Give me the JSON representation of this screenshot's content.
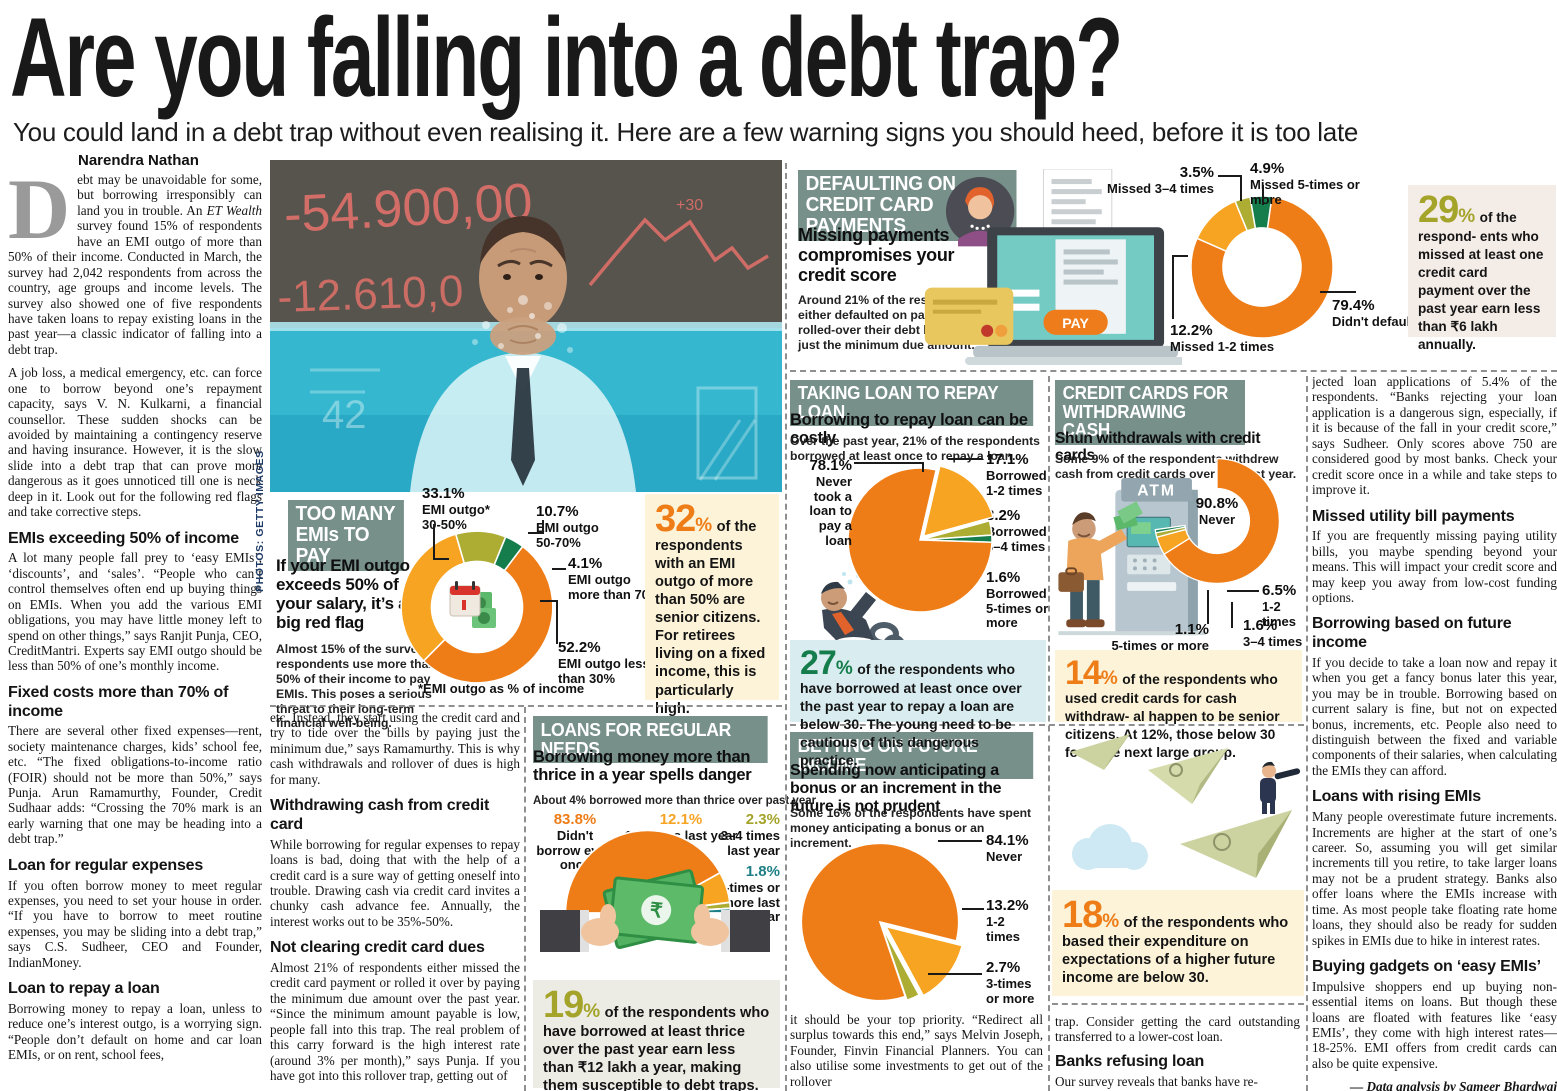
{
  "masthead": {
    "headline": "Are you falling into a debt trap?",
    "deck": "You could land in a debt trap without even realising it. Here are a few warning signs you should heed, before it is too late",
    "byline": "Narendra Nathan"
  },
  "photo": {
    "credit": "PHOTOS: GETTY IMAGES",
    "board1": "-54.900,00",
    "board2": "-12.610,0",
    "board3": "+30",
    "board4": "42"
  },
  "article": {
    "dropcap": "D",
    "p1a": "ebt may be unavoidable for some, but borrowing irresponsibly can land you in trouble. An ",
    "p1i": "ET Wealth",
    "p1b": " survey found 15% of respondents have an EMI outgo of more than 50% of their income. Conducted in March, the survey had 2,042 respondents from across the country, age groups and income levels. The survey also showed one of five respondents have taken loans to repay existing loans in the past year—a classic indicator of falling into a debt trap.",
    "p2": "A job loss, a medical emergency, etc. can force one to borrow beyond one’s repayment capacity, says V. N. Kulkarni, a financial counsellor. These sudden shocks can be avoided by maintaining a contingency reserve and having insurance. However, it is the slow slide into a debt trap that can prove more dangerous as it goes unnoticed till one is neck deep in it. Look out for the following red flags and take corrective steps.",
    "s1_h": "EMIs exceeding 50% of income",
    "s1_b": "A lot many people fall prey to ‘easy EMIs’, ‘discounts’, and ‘sales’. “People who can’t control themselves often end up buying things on EMIs. When you add the various EMI obligations, you may have little money left to spend on other things,” says Ranjit Punja, CEO, CreditMantri. Experts say EMI outgo should be less than 50% of one’s monthly income.",
    "s2_h": "Fixed costs more than 70% of income",
    "s2_b": "There are several other fixed expenses—rent, society maintenance charges, kids’ school fee, etc. “The fixed obligations-to-income ratio (FOIR) should not be more than 50%,” says Punja. Arun Ramamurthy, Founder, Credit Sudhaar adds: “Crossing the 70% mark is an early warning that one may be heading into a debt trap.”",
    "s3_h": "Loan for regular expenses",
    "s3_b": "If you often borrow money to meet regular expenses, you need to set your house in order. “If you have to borrow to meet routine expenses, you may be sliding into a debt trap,” says C.S. Sudheer, CEO and Founder, IndianMoney.",
    "s4_h": "Loan to repay a loan",
    "s4_b": "Borrowing money to repay a loan, unless to reduce one’s interest outgo, is a worrying sign. “People don’t default on home and car loan EMIs, or on rent, school fees,",
    "c2_p": "etc. Instead, they start using the credit card and try to tide over the bills by paying just the minimum due,” says Ramamurthy. This is why cash withdrawals and rollover of dues is high for many.",
    "s5_h": "Withdrawing cash from credit card",
    "s5_b": "While borrowing for regular expenses to repay loans is bad, doing that with the help of a credit card is a sure way of getting oneself into trouble. Drawing cash via credit card invites a chunky cash advance fee. Annually, the interest works out to be 35%-50%.",
    "s6_h": "Not clearing credit card dues",
    "s6_b": "Almost 21% of respondents either missed the credit card payment or rolled it over by paying the minimum due amount over the past year. “Since the minimum amount payable is low, people fall into this trap. The real problem of this carry forward is the high interest rate (around 3% per month),” says Punja. If you have got into this rollover trap, getting out of",
    "c3_p": "it should be your top priority. “Redirect all surplus towards this end,” says Melvin Joseph, Founder, Finvin Financial Planners. You can also utilise some investments to get out of the rollover",
    "c4_p": "trap. Consider getting the card outstanding transferred to a lower-cost loan.",
    "s7_h": "Banks refusing loan",
    "s7_b": "Our survey reveals that banks have re-",
    "c5_p": "jected loan applications of 5.4% of the respondents. “Banks rejecting your loan application is a dangerous sign, especially, if it is because of the fall in your credit score,” says Sudheer. Only scores above 750 are considered good by most banks. Check your credit score once in a while and take steps to improve it.",
    "s8_h": "Missed utility bill payments",
    "s8_b": "If you are frequently missing paying utility bills, you maybe spending beyond your means. This will impact your credit score and may keep you away from low-cost funding options.",
    "s9_h": "Borrowing based on future income",
    "s9_b": "If you decide to take a loan now and repay it when you get a fancy bonus later this year, you may be in trouble. Borrowing based on current salary is fine, but not on expected bonus, increments, etc. People also need to distinguish between the fixed and variable components of their salaries, when calculating the EMIs they can afford.",
    "s10_h": "Loans with rising EMIs",
    "s10_b": "Many people overestimate future increments. Increments are higher at the start of one’s career. So, assuming you will get similar increments till you retire, to take larger loans may not be a prudent strategy. Banks also offer loans where the EMIs increase with time. As most people take floating rate home loans, they should also be ready for sudden spikes in EMIs due to hike in interest rates.",
    "s11_h": "Buying gadgets on ‘easy EMIs’",
    "s11_b": "Impulsive shoppers end up buying non-essential items on loans. But though these loans are floated with features like ‘easy EMIs’, they come with high interest rates—18-25%. EMI offers from credit cards can also be quite expensive.",
    "credit": "— Data analysis by Sameer Bhardwaj"
  },
  "sec_emi": {
    "badge": "TOO MANY EMIs TO PAY",
    "subhead": "If your EMI outgo exceeds 50% of your salary, it’s a big red flag",
    "note": "Almost 15% of the survey respondents use more than 50% of their income to pay EMIs. This poses a serious threat to their long-term financial well-being.",
    "footnote": "*EMI outgo as % of income",
    "labels": [
      {
        "pct": "33.1%",
        "text": "EMI outgo* 30-50%"
      },
      {
        "pct": "10.7%",
        "text": "EMI outgo 50-70%"
      },
      {
        "pct": "4.1%",
        "text": "EMI outgo more than 70%"
      },
      {
        "pct": "52.2%",
        "text": "EMI outgo less than 30%"
      }
    ],
    "callout": {
      "num": "32",
      "unit": "%",
      "text": "of the respondents with an EMI outgo of more than 50% are senior citizens. For retirees living on a fixed income, this is particularly high."
    }
  },
  "sec_default": {
    "badge": "DEFAULTING ON CREDIT CARD PAYMENTS",
    "subhead": "Missing payments compromises your credit score",
    "note": "Around 21% of the respondents either defaulted on payment or rolled-over their debt by paying just the minimum due amount.",
    "pay": "PAY",
    "labels": [
      {
        "pct": "3.5%",
        "text": "Missed 3–4 times"
      },
      {
        "pct": "4.9%",
        "text": "Missed 5-times or more"
      },
      {
        "pct": "79.4%",
        "text": "Didn't default"
      },
      {
        "pct": "12.2%",
        "text": "Missed 1-2 times"
      }
    ],
    "callout": {
      "num": "29",
      "unit": "%",
      "text": "of the respond- ents who missed at least one credit card payment over the past year earn less than ₹6 lakh annually."
    }
  },
  "sec_repay": {
    "badge": "TAKING LOAN TO REPAY LOAN",
    "subhead": "Borrowing to repay loan can be costly",
    "note": "Over the past year, 21% of the respondents borrowed at least once to repay a loan.",
    "labels": [
      {
        "pct": "78.1%",
        "text": "Never took a loan to pay a loan"
      },
      {
        "pct": "17.1%",
        "text": "Borrowed 1-2 times"
      },
      {
        "pct": "3.2%",
        "text": "Borrowed 3–4 times"
      },
      {
        "pct": "1.6%",
        "text": "Borrowed 5-times or more"
      }
    ],
    "callout": {
      "num": "27",
      "unit": "%",
      "text": "of the respondents who have borrowed at least once over the past year to repay a loan are below 30. The young need to be cautious of this dangerous practice."
    }
  },
  "sec_cash": {
    "badge": "CREDIT CARDS FOR WITHDRAWING CASH",
    "subhead": "Shun withdrawals with credit cards",
    "note": "Some 9% of the respondents withdrew cash from credit cards over the past year.",
    "atm": "ATM",
    "labels": [
      {
        "pct": "90.8%",
        "text": "Never"
      },
      {
        "pct": "6.5%",
        "text": "1-2 times"
      },
      {
        "pct": "1.6%",
        "text": "3–4 times"
      },
      {
        "pct": "1.1%",
        "text": "5-times or more"
      }
    ],
    "callout": {
      "num": "14",
      "unit": "%",
      "text": "of the respondents who used credit cards for cash withdraw- al happen to be senior citizens. At 12%, those below 30 form the next large group."
    }
  },
  "sec_regular": {
    "badge": "LOANS FOR REGULAR NEEDS",
    "subhead": "Borrowing money more than thrice in a year spells danger",
    "note": "About 4% borrowed more than thrice over past year.",
    "labels": [
      {
        "pct": "83.8%",
        "text": "Didn't borrow even once"
      },
      {
        "pct": "12.1%",
        "text": "1-2 times last year"
      },
      {
        "pct": "2.3%",
        "text": "3–4 times last year"
      },
      {
        "pct": "1.8%",
        "text": "5-times or more last year"
      }
    ],
    "callout": {
      "num": "19",
      "unit": "%",
      "text": "of the respondents who have borrowed at least thrice over the past year earn less than ₹12 lakh a year, making them susceptible to debt traps."
    }
  },
  "sec_future": {
    "badge": "BETTING ON FUTURE INCOME",
    "subhead": "Spending now anticipating a bonus or an increment in the future is not prudent",
    "note": "Some 16% of the respondents have spent money anticipating a bonus or an increment.",
    "labels": [
      {
        "pct": "84.1%",
        "text": "Never"
      },
      {
        "pct": "13.2%",
        "text": "1-2 times"
      },
      {
        "pct": "2.7%",
        "text": "3-times or more"
      }
    ],
    "callout": {
      "num": "18",
      "unit": "%",
      "text": "of the respondents who based their expenditure on expectations of a higher future income are below 30."
    }
  },
  "colors": {
    "orange": "#ee7d18",
    "light_orange": "#f7a423",
    "olive": "#adad33",
    "green": "#157d4b",
    "teal": "#1d7f85",
    "sage_badge": "#78908a",
    "cream_box": "#fcf3d8",
    "blue_box": "#d9ecef",
    "pink_box": "#f4ece7",
    "gray_box": "#ecebe4"
  },
  "chart_data": [
    {
      "id": "emi-outgo-donut",
      "type": "donut",
      "title": "TOO MANY EMIs TO PAY",
      "labels": [
        "EMI outgo less than 30%",
        "EMI outgo 30-50%",
        "EMI outgo 50-70%",
        "EMI outgo more than 70%"
      ],
      "values": [
        52.2,
        33.1,
        10.7,
        4.1
      ],
      "colors": [
        "#ee7d18",
        "#f7a423",
        "#adad33",
        "#157d4b"
      ],
      "start": 37,
      "inner": 0.6
    },
    {
      "id": "card-default-donut",
      "type": "donut",
      "title": "DEFAULTING ON CREDIT CARD PAYMENTS",
      "labels": [
        "Didn't default",
        "Missed 1-2 times",
        "Missed 3–4 times",
        "Missed 5-times or more"
      ],
      "values": [
        79.4,
        12.2,
        3.5,
        4.9
      ],
      "colors": [
        "#ee7d18",
        "#f7a423",
        "#adad33",
        "#157d4b"
      ],
      "start": 8,
      "inner": 0.55
    },
    {
      "id": "loan-repay-pie",
      "type": "pie",
      "title": "TAKING LOAN TO REPAY LOAN",
      "labels": [
        "Borrowed 1-2 times",
        "Borrowed 3–4 times",
        "Borrowed 5-times or more",
        "Never took a loan to pay a loan"
      ],
      "values": [
        17.1,
        3.2,
        1.6,
        78.1
      ],
      "colors": [
        "#f7a423",
        "#adad33",
        "#157d4b",
        "#ee7d18"
      ],
      "start": 13,
      "explode": [
        7,
        0,
        0,
        0
      ]
    },
    {
      "id": "cash-withdrawal-gauge",
      "type": "donut",
      "title": "CREDIT CARDS FOR WITHDRAWING CASH",
      "labels": [
        "Never",
        "1-2 times",
        "3–4 times",
        "5-times or more"
      ],
      "values": [
        90.8,
        6.5,
        1.6,
        1.1
      ],
      "colors": [
        "#ee7d18",
        "#f7a423",
        "#adad33",
        "#157d4b"
      ],
      "start": 0,
      "span": 262,
      "inner": 0.52
    },
    {
      "id": "regular-needs-semicircle",
      "type": "pie",
      "title": "LOANS FOR REGULAR NEEDS",
      "semi": true,
      "labels": [
        "Didn't borrow even once",
        "1-2 times last year",
        "3–4 times last year",
        "5-times or more last year"
      ],
      "values": [
        83.8,
        12.1,
        2.3,
        1.8
      ],
      "colors": [
        "#ee7d18",
        "#f7a423",
        "#adad33",
        "#1d7f85"
      ],
      "start": 270,
      "span": 180
    },
    {
      "id": "future-income-pie",
      "type": "pie",
      "title": "BETTING ON FUTURE INCOME",
      "labels": [
        "1-2 times",
        "3-times or more",
        "Never"
      ],
      "values": [
        13.2,
        2.7,
        84.1
      ],
      "colors": [
        "#f7a423",
        "#adad33",
        "#ee7d18"
      ],
      "start": 104,
      "explode": [
        9,
        5,
        0
      ]
    }
  ]
}
